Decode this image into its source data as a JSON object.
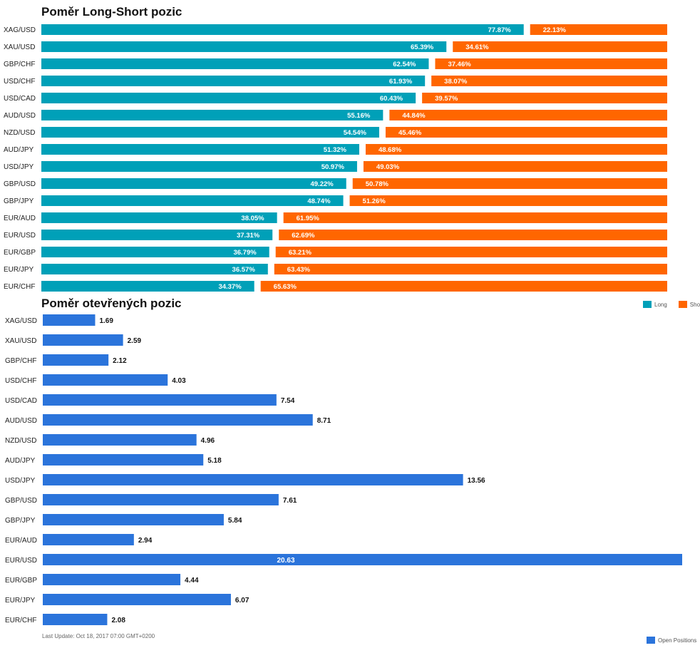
{
  "chart_data": [
    {
      "type": "bar",
      "stacked": true,
      "orientation": "horizontal",
      "title": "Poměr Long-Short pozic",
      "categories": [
        "XAG/USD",
        "XAU/USD",
        "GBP/CHF",
        "USD/CHF",
        "USD/CAD",
        "AUD/USD",
        "NZD/USD",
        "AUD/JPY",
        "USD/JPY",
        "GBP/USD",
        "GBP/JPY",
        "EUR/AUD",
        "EUR/USD",
        "EUR/GBP",
        "EUR/JPY",
        "EUR/CHF"
      ],
      "series": [
        {
          "name": "Long",
          "color": "#00a0b8",
          "values": [
            77.87,
            65.39,
            62.54,
            61.93,
            60.43,
            55.16,
            54.54,
            51.32,
            50.97,
            49.22,
            48.74,
            38.05,
            37.31,
            36.79,
            36.57,
            34.37
          ],
          "labels": [
            "77.87%",
            "65.39%",
            "62.54%",
            "61.93%",
            "60.43%",
            "55.16%",
            "54.54%",
            "51.32%",
            "50.97%",
            "49.22%",
            "48.74%",
            "38.05%",
            "37.31%",
            "36.79%",
            "36.57%",
            "34.37%"
          ]
        },
        {
          "name": "Short",
          "color": "#ff6600",
          "values": [
            22.13,
            34.61,
            37.46,
            38.07,
            39.57,
            44.84,
            45.46,
            48.68,
            49.03,
            50.78,
            51.26,
            61.95,
            62.69,
            63.21,
            63.43,
            65.63
          ],
          "labels": [
            "22.13%",
            "34.61%",
            "37.46%",
            "38.07%",
            "39.57%",
            "44.84%",
            "45.46%",
            "48.68%",
            "49.03%",
            "50.78%",
            "51.26%",
            "61.95%",
            "62.69%",
            "63.21%",
            "63.43%",
            "65.63%"
          ]
        }
      ],
      "legend_position": "bottom-right"
    },
    {
      "type": "bar",
      "orientation": "horizontal",
      "title": "Poměr otevřených pozic",
      "categories": [
        "XAG/USD",
        "XAU/USD",
        "GBP/CHF",
        "USD/CHF",
        "USD/CAD",
        "AUD/USD",
        "NZD/USD",
        "AUD/JPY",
        "USD/JPY",
        "GBP/USD",
        "GBP/JPY",
        "EUR/AUD",
        "EUR/USD",
        "EUR/GBP",
        "EUR/JPY",
        "EUR/CHF"
      ],
      "series": [
        {
          "name": "Open Positions",
          "color": "#2b74db",
          "values": [
            1.69,
            2.59,
            2.12,
            4.03,
            7.54,
            8.71,
            4.96,
            5.18,
            13.56,
            7.61,
            5.84,
            2.94,
            20.63,
            4.44,
            6.07,
            2.08
          ],
          "labels": [
            "1.69",
            "2.59",
            "2.12",
            "4.03",
            "7.54",
            "8.71",
            "4.96",
            "5.18",
            "13.56",
            "7.61",
            "5.84",
            "2.94",
            "20.63",
            "4.44",
            "6.07",
            "2.08"
          ]
        }
      ],
      "legend_position": "bottom-right"
    }
  ],
  "footer": "Last Update: Oct 18, 2017 07:00 GMT+0200"
}
